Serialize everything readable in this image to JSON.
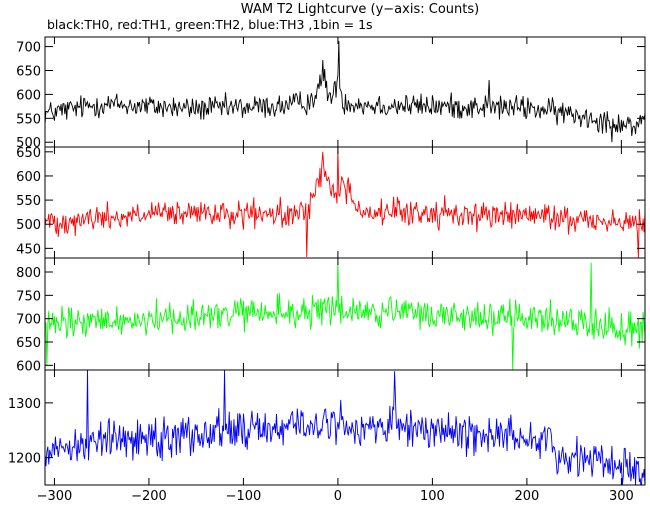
{
  "chart_data": {
    "type": "line",
    "title": "WAM T2 Lightcurve (y−axis: Counts)",
    "subtitle": "black:TH0, red:TH1, green:TH2, blue:TH3 ,1bin = 1s",
    "xlim": [
      -310,
      325
    ],
    "x_ticks": [
      -300,
      -200,
      -100,
      0,
      100,
      200,
      300
    ],
    "x_ticks_labels": [
      "−300",
      "−200",
      "−100",
      "0",
      "100",
      "200",
      "300"
    ],
    "x_step": 1,
    "panels": [
      {
        "series_label": "TH0",
        "color": "#000000",
        "ylim": [
          490,
          720
        ],
        "y_ticks": [
          500,
          550,
          600,
          650,
          700
        ],
        "keypoints_x": [
          -310,
          -250,
          -150,
          -60,
          -30,
          -20,
          -15,
          -10,
          -5,
          0,
          5,
          30,
          100,
          200,
          260,
          300,
          325
        ],
        "keypoints_y": [
          560,
          580,
          570,
          575,
          585,
          610,
          640,
          600,
          590,
          640,
          585,
          578,
          575,
          572,
          555,
          540,
          532
        ],
        "noise_amplitude": 22,
        "spike_x": [
          1,
          -16,
          160,
          290
        ],
        "spike_y": [
          712,
          672,
          630,
          500
        ]
      },
      {
        "series_label": "TH1",
        "color": "#ff0000",
        "ylim": [
          430,
          660
        ],
        "y_ticks": [
          450,
          500,
          550,
          600,
          650
        ],
        "keypoints_x": [
          -310,
          -200,
          -100,
          -40,
          -25,
          -18,
          -12,
          -5,
          0,
          5,
          25,
          100,
          200,
          300,
          325
        ],
        "keypoints_y": [
          505,
          520,
          520,
          518,
          560,
          610,
          600,
          560,
          555,
          590,
          525,
          522,
          518,
          505,
          498
        ],
        "noise_amplitude": 24,
        "spike_x": [
          0,
          -16,
          -33,
          318
        ],
        "spike_y": [
          657,
          650,
          432,
          430
        ]
      },
      {
        "series_label": "TH2",
        "color": "#00ff00",
        "ylim": [
          590,
          830
        ],
        "y_ticks": [
          600,
          650,
          700,
          750,
          800
        ],
        "keypoints_x": [
          -310,
          -200,
          -100,
          -20,
          0,
          50,
          150,
          250,
          325
        ],
        "keypoints_y": [
          685,
          700,
          710,
          715,
          718,
          712,
          705,
          695,
          675
        ],
        "noise_amplitude": 30,
        "spike_x": [
          0,
          268,
          185,
          -308
        ],
        "spike_y": [
          822,
          820,
          590,
          600
        ]
      },
      {
        "series_label": "TH3",
        "color": "#0000ff",
        "ylim": [
          1150,
          1360
        ],
        "y_ticks": [
          1200,
          1300
        ],
        "keypoints_x": [
          -310,
          -250,
          -150,
          -50,
          0,
          100,
          225,
          230,
          280,
          325
        ],
        "keypoints_y": [
          1215,
          1232,
          1245,
          1258,
          1260,
          1250,
          1235,
          1205,
          1195,
          1170
        ],
        "noise_amplitude": 32,
        "spike_x": [
          -265,
          -120,
          60,
          315
        ],
        "spike_y": [
          1362,
          1360,
          1358,
          1150
        ]
      }
    ]
  }
}
